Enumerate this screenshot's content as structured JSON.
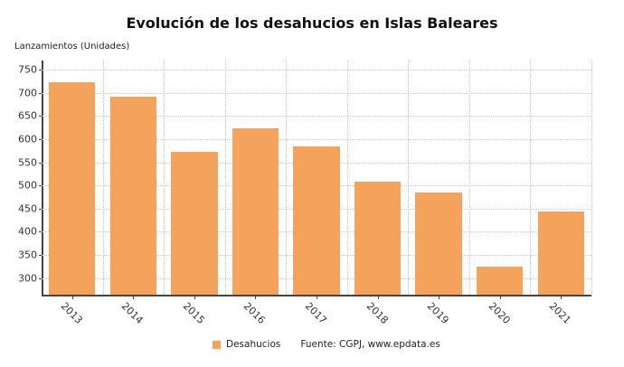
{
  "chart_data": {
    "type": "bar",
    "title": "Evolución de los desahucios en Islas Baleares",
    "xlabel": "",
    "ylabel": "Lanzamientos (Unidades)",
    "categories": [
      "2013",
      "2014",
      "2015",
      "2016",
      "2017",
      "2018",
      "2019",
      "2020",
      "2021"
    ],
    "series": [
      {
        "name": "Desahucios",
        "color": "#F5A25D",
        "values": [
          724,
          692,
          572,
          624,
          584,
          508,
          484,
          324,
          444
        ]
      }
    ],
    "ylim": [
      264,
      770
    ],
    "yticks": [
      300,
      350,
      400,
      450,
      500,
      550,
      600,
      650,
      700,
      750
    ],
    "grid": true,
    "legend_position": "bottom",
    "source": "Fuente: CGPJ, www.epdata.es"
  },
  "title": "Evolución de los desahucios en Islas Baleares",
  "ylabel": "Lanzamientos (Unidades)",
  "legend": {
    "label": "Desahucios",
    "source": "Fuente: CGPJ, www.epdata.es"
  }
}
